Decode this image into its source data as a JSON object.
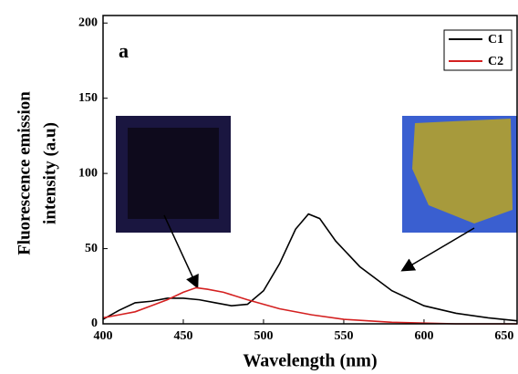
{
  "chart_data": {
    "type": "line",
    "annotation": "a",
    "xlabel": "Wavelength (nm)",
    "ylabel_lines": [
      "Fluorescence emission",
      "intensity (a.u)"
    ],
    "xlim": [
      400,
      658
    ],
    "xticks": [
      400,
      450,
      500,
      550,
      600,
      650
    ],
    "ylim": [
      0,
      205
    ],
    "yticks": [
      0,
      50,
      100,
      150,
      200
    ],
    "series": [
      {
        "name": "C1",
        "color": "#000000",
        "x": [
          400,
          410,
          420,
          430,
          440,
          450,
          460,
          470,
          480,
          490,
          500,
          510,
          520,
          528,
          535,
          545,
          560,
          580,
          600,
          620,
          640,
          658
        ],
        "values": [
          3,
          9,
          14,
          15,
          17,
          17,
          16,
          14,
          12,
          13,
          22,
          40,
          63,
          73,
          70,
          55,
          38,
          22,
          12,
          7,
          4,
          2
        ]
      },
      {
        "name": "C2",
        "color": "#d42020",
        "x": [
          400,
          410,
          420,
          430,
          440,
          450,
          458,
          465,
          475,
          490,
          510,
          530,
          550,
          580,
          620,
          658
        ],
        "values": [
          4,
          6,
          8,
          12,
          16,
          21,
          24,
          23,
          21,
          16,
          10,
          6,
          3,
          1,
          0,
          0
        ]
      }
    ],
    "legend": "top-right"
  }
}
